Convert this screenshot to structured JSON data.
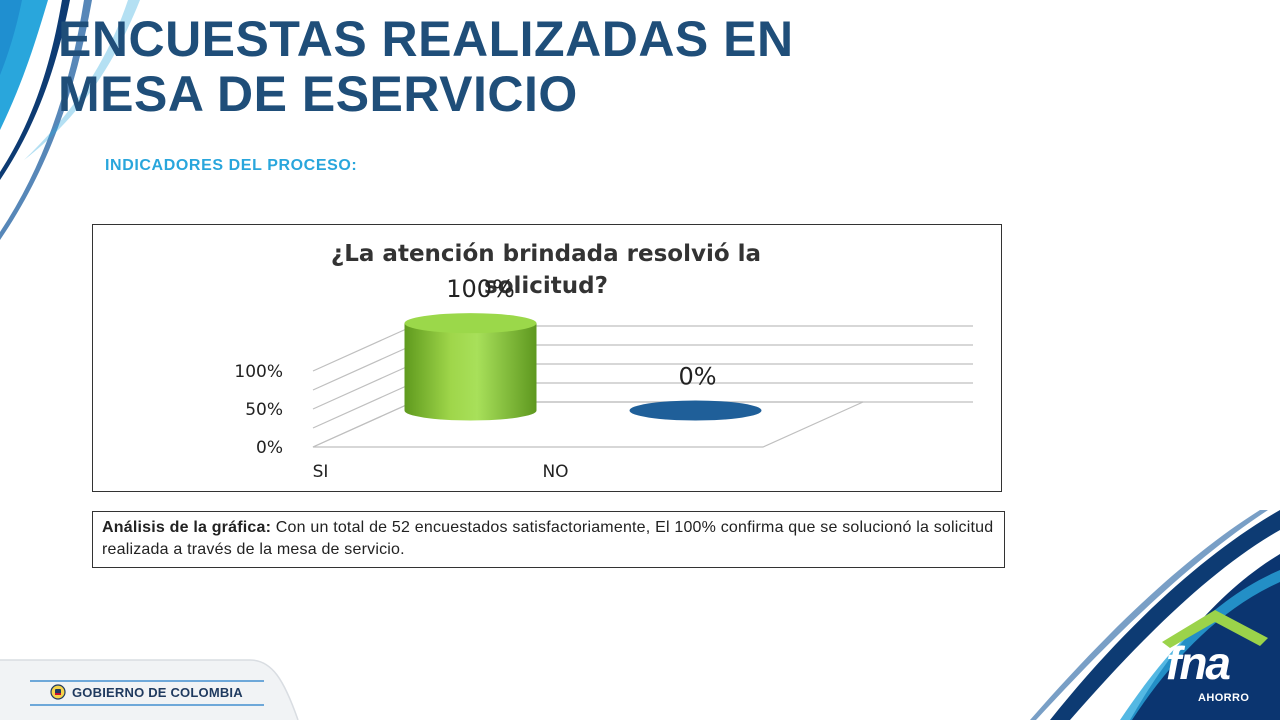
{
  "slide": {
    "title_line1": "ENCUESTAS REALIZADAS EN",
    "title_line2": "MESA DE ESERVICIO",
    "subtitle": "INDICADORES DEL PROCESO:"
  },
  "chart_data": {
    "type": "bar",
    "title_line1": "¿La atención brindada resolvió la",
    "title_line2": "solicitud?",
    "categories": [
      "SI",
      "NO"
    ],
    "values": [
      100,
      0
    ],
    "value_labels": [
      "100%",
      "0%"
    ],
    "ylim": [
      0,
      100
    ],
    "y_ticks": [
      0,
      50,
      100
    ],
    "y_tick_labels": [
      "0%",
      "50%",
      "100%"
    ],
    "grid": true,
    "style": "3d-cylinder",
    "legend": "none",
    "colors": [
      "#8cc63f",
      "#1f5f99"
    ]
  },
  "analysis": {
    "label": "Análisis de la gráfica:",
    "text": " Con un total de 52 encuestados satisfactoriamente, El 100% confirma que se solucionó la solicitud realizada a través de la mesa de servicio."
  },
  "footer": {
    "government": "GOBIERNO DE COLOMBIA",
    "logo_word": "fna",
    "logo_sub": "AHORRO",
    "emblem_icon": "colombia-coat-of-arms-icon",
    "brand_icon": "house-roof-icon"
  },
  "theme": {
    "title_color": "#1f4e79",
    "subtitle_color": "#29a6dc",
    "accent_light": "#29a6dc",
    "accent_dark": "#0d3b73",
    "bar_green": "#8cc63f",
    "bar_blue": "#1f5f99"
  }
}
